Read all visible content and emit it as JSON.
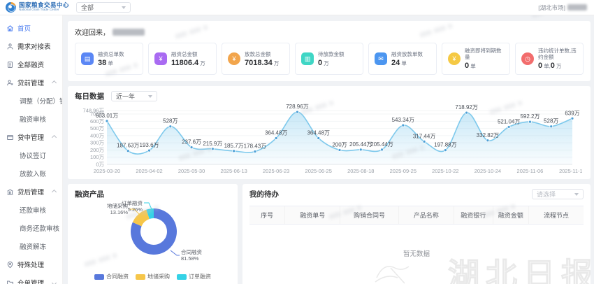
{
  "header": {
    "logo_title": "国家粮食交易中心",
    "logo_subtitle": "National Grain Trade Center",
    "market_select_value": "全部",
    "user_prefix": "[湖北市场]"
  },
  "sidebar": {
    "items": [
      {
        "label": "首页",
        "icon": "home-icon",
        "active": true
      },
      {
        "label": "需求对接表",
        "icon": "user-icon"
      },
      {
        "label": "全部融资",
        "icon": "document-icon"
      },
      {
        "label": "贷前管理",
        "icon": "loan-pre-icon",
        "expandable": true,
        "expanded": true,
        "children": [
          "调整（分配）银行",
          "融资审核"
        ]
      },
      {
        "label": "贷中管理",
        "icon": "loan-mid-icon",
        "expandable": true,
        "expanded": true,
        "children": [
          "协议签订",
          "放款入账"
        ]
      },
      {
        "label": "贷后管理",
        "icon": "bank-icon",
        "expandable": true,
        "expanded": true,
        "children": [
          "还款审核",
          "商务还款审核",
          "融资解冻"
        ]
      },
      {
        "label": "特殊处理",
        "icon": "pin-icon"
      },
      {
        "label": "仓单管理",
        "icon": "folder-icon",
        "expandable": true,
        "expanded": false,
        "children": []
      }
    ]
  },
  "welcome": {
    "text": "欢迎回来，"
  },
  "stats": {
    "cards": [
      {
        "label": "融资总单数",
        "parts": [
          {
            "v": "38",
            "u": "单"
          }
        ],
        "icon": "document-badge-icon",
        "glyph": "▤",
        "color": "#5b87f5",
        "shape": "square"
      },
      {
        "label": "融资总金额",
        "parts": [
          {
            "v": "11806.4",
            "u": "万"
          }
        ],
        "icon": "money-bag-icon",
        "glyph": "¥",
        "color": "#a96bf2",
        "shape": "square"
      },
      {
        "label": "放款总金额",
        "parts": [
          {
            "v": "7018.34",
            "u": "万"
          }
        ],
        "icon": "coin-icon",
        "glyph": "¥",
        "color": "#f2a throws54c",
        "shape": "round"
      },
      {
        "label": "待放款金额",
        "parts": [
          {
            "v": "0",
            "u": "万"
          }
        ],
        "icon": "wallet-icon",
        "glyph": "▥",
        "color": "#3fd6c5",
        "shape": "square"
      },
      {
        "label": "融资放款单数",
        "parts": [
          {
            "v": "24",
            "u": "单"
          }
        ],
        "icon": "envelope-icon",
        "glyph": "✉",
        "color": "#4c96f0",
        "shape": "square"
      },
      {
        "label": "融资即将到期数量",
        "parts": [
          {
            "v": "0",
            "u": "单"
          }
        ],
        "icon": "coin-clock-icon",
        "glyph": "¥",
        "color": "#f5c944",
        "shape": "round"
      },
      {
        "label": "违约统计单数,违约金额",
        "parts": [
          {
            "v": "0",
            "u": "单,"
          },
          {
            "v": "0",
            "u": "万"
          }
        ],
        "icon": "clock-alert-icon",
        "glyph": "◷",
        "color": "#f26d6d",
        "shape": "round"
      }
    ]
  },
  "daily": {
    "title": "每日数据",
    "range_select_value": "近一年"
  },
  "products": {
    "title": "融资产品"
  },
  "todo": {
    "title": "我的待办",
    "select_placeholder": "请选择",
    "columns": [
      "序号",
      "融资单号",
      "购销合同号",
      "产品名称",
      "融资银行",
      "融资金额",
      "流程节点"
    ],
    "empty_text": "暂无数据"
  },
  "watermark_text": "湖北日报",
  "chart_data": [
    {
      "type": "line",
      "title": "每日数据",
      "range": "近一年",
      "x_labels": [
        "2025-03-20",
        "2025-04-02",
        "2025-05-30",
        "2025-06-13",
        "2025-06-23",
        "2025-06-25",
        "2025-08-18",
        "2025-09-25",
        "2025-10-22",
        "2025-10-24",
        "2025-11-06",
        "2025-11-18"
      ],
      "x_label_indices": [
        0,
        2,
        4,
        6,
        8,
        10,
        12,
        14,
        16,
        18,
        20,
        22
      ],
      "values": [
        603.01,
        187.63,
        193.6,
        528,
        237.6,
        215.9,
        185.7,
        178.43,
        364.48,
        728.96,
        364.48,
        200,
        205.44,
        205.44,
        543.34,
        317.44,
        197.88,
        718.92,
        332.82,
        521.04,
        592.2,
        528,
        639
      ],
      "point_labels": [
        "603.01万",
        "187.63万",
        "193.6万",
        "528万",
        "237.6万",
        "215.9万",
        "185.7万",
        "178.43万",
        "364.48万",
        "728.96万",
        "364.48万",
        "200万",
        "205.44万",
        "205.44万",
        "543.34万",
        "317.44万",
        "197.88万",
        "718.92万",
        "332.82万",
        "521.04万",
        "592.2万",
        "528万",
        "639万"
      ],
      "y_ticks": [
        "748.96万",
        "700万",
        "600万",
        "500万",
        "400万",
        "300万",
        "200万",
        "100万",
        "0万"
      ],
      "ylim": [
        0,
        748.96
      ],
      "line_color": "#7ec9ec",
      "dot_color": "#4c9fd6",
      "grid": true
    },
    {
      "type": "pie",
      "title": "融资产品",
      "slices": [
        {
          "name": "合同融资",
          "percent": 81.58,
          "percent_label": "81.58%",
          "color": "#5878dc"
        },
        {
          "name": "地储采购",
          "percent": 13.16,
          "percent_label": "13.16%",
          "color": "#f6c64a"
        },
        {
          "name": "订单融资",
          "percent": 5.26,
          "percent_label": "5.26%",
          "color": "#35d2e6"
        }
      ],
      "legend": [
        "合同融资",
        "地储采购",
        "订单融资"
      ],
      "legend_position": "bottom"
    }
  ]
}
